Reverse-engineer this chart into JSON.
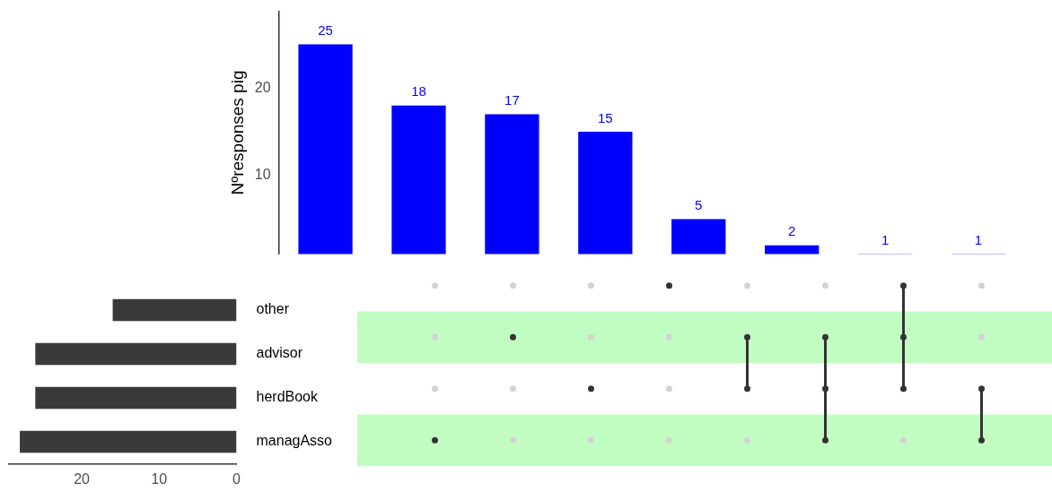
{
  "chart_data": [
    {
      "type": "bar",
      "ylabel": "Nºresponses pig",
      "categories": [
        null,
        null,
        null,
        null,
        null,
        null,
        null,
        null
      ],
      "series": [
        {
          "color": "#0000ff",
          "values": [
            25,
            18,
            17,
            15,
            5,
            2,
            1,
            1
          ]
        }
      ],
      "ylim": [
        1,
        28.8
      ],
      "yticks": [
        10,
        20
      ],
      "grid": false,
      "legend": false,
      "data_labels": true,
      "tick_labels": "y"
    },
    {
      "type": "bar",
      "orientation": "horizontal",
      "categories": [
        "other",
        "advisor",
        "herdBook",
        "managAsso"
      ],
      "series": [
        {
          "color": "#3a3a3a",
          "values": [
            16,
            26,
            26,
            28
          ]
        }
      ],
      "xlim": [
        29.4,
        0
      ],
      "xticks": [
        20,
        10,
        0
      ],
      "grid": false,
      "legend": false
    }
  ]
}
